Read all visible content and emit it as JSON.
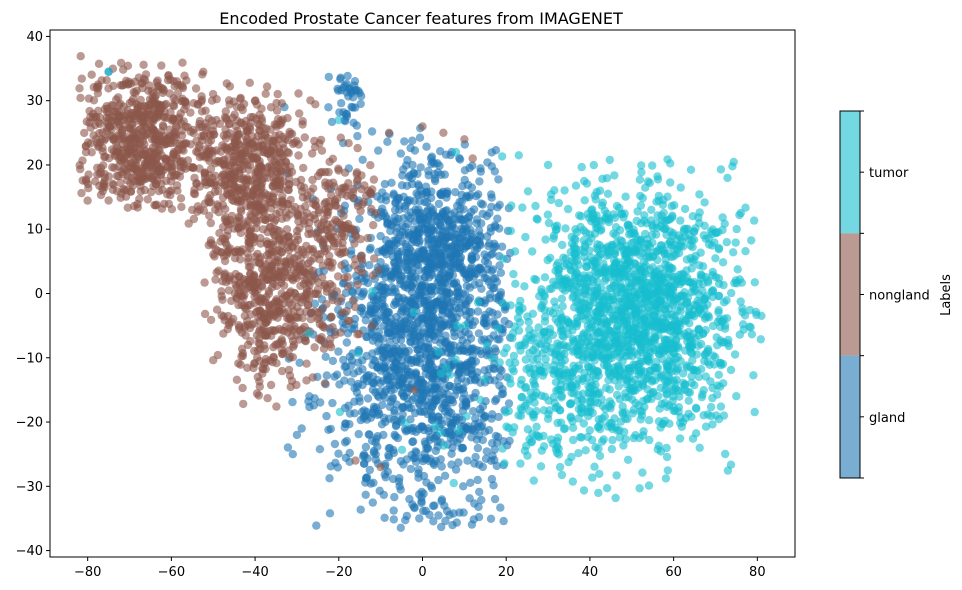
{
  "chart_data": {
    "type": "scatter",
    "title": "Encoded Prostate Cancer features from IMAGENET",
    "xlabel": "",
    "ylabel": "",
    "xlim": [
      -89,
      89
    ],
    "ylim": [
      -41,
      41
    ],
    "x_ticks": [
      -80,
      -60,
      -40,
      -20,
      0,
      20,
      40,
      60,
      80
    ],
    "y_ticks": [
      -40,
      -30,
      -20,
      -10,
      0,
      10,
      20,
      30,
      40
    ],
    "x_tick_labels": [
      "−80",
      "−60",
      "−40",
      "−20",
      "0",
      "20",
      "40",
      "60",
      "80"
    ],
    "y_tick_labels": [
      "−40",
      "−30",
      "−20",
      "−10",
      "0",
      "10",
      "20",
      "30",
      "40"
    ],
    "grid": false,
    "point_alpha": 0.6,
    "colorbar": {
      "title": "Labels",
      "entries": [
        {
          "label": "tumor",
          "color": "#17becf"
        },
        {
          "label": "nongland",
          "color": "#8c564b"
        },
        {
          "label": "gland",
          "color": "#1f77b4"
        }
      ]
    },
    "series": [
      {
        "name": "gland",
        "color": "#1f77b4",
        "clusters": [
          {
            "cx": 0,
            "cy": -8,
            "sx": 11,
            "sy": 14,
            "n": 1500,
            "xmin": -33,
            "xmax": 21,
            "ymin": -37,
            "ymax": 26
          },
          {
            "cx": 5,
            "cy": 8,
            "sx": 8,
            "sy": 7,
            "n": 350,
            "xmin": -10,
            "xmax": 19,
            "ymin": -5,
            "ymax": 26
          },
          {
            "cx": -18,
            "cy": 31,
            "sx": 2,
            "sy": 2.5,
            "n": 40,
            "xmin": -23,
            "xmax": -12,
            "ymin": 24,
            "ymax": 34
          }
        ],
        "points": [
          [
            -75,
            34.5
          ],
          [
            -33,
            29
          ],
          [
            -30,
            -22
          ],
          [
            -31,
            -25
          ]
        ]
      },
      {
        "name": "nongland",
        "color": "#8c564b",
        "clusters": [
          {
            "cx": -67,
            "cy": 24,
            "sx": 8,
            "sy": 5.5,
            "n": 650,
            "xmin": -82,
            "xmax": -49,
            "ymin": 13,
            "ymax": 37
          },
          {
            "cx": -42,
            "cy": 20,
            "sx": 7,
            "sy": 6,
            "n": 500,
            "xmin": -56,
            "xmax": -25,
            "ymin": 5,
            "ymax": 33
          },
          {
            "cx": -35,
            "cy": 2,
            "sx": 8,
            "sy": 8,
            "n": 650,
            "xmin": -53,
            "xmax": -14,
            "ymin": -18,
            "ymax": 18
          },
          {
            "cx": -20,
            "cy": 12,
            "sx": 5,
            "sy": 6,
            "n": 150,
            "xmin": -30,
            "xmax": -10,
            "ymin": 0,
            "ymax": 25
          }
        ],
        "points": [
          [
            -8,
            25
          ],
          [
            0,
            26
          ],
          [
            5,
            25
          ],
          [
            10,
            24
          ],
          [
            12,
            21
          ],
          [
            -10,
            -27
          ],
          [
            -16,
            -26
          ],
          [
            -2,
            -15
          ],
          [
            -12,
            -5
          ]
        ]
      },
      {
        "name": "tumor",
        "color": "#17becf",
        "clusters": [
          {
            "cx": 50,
            "cy": -3,
            "sx": 13,
            "sy": 10,
            "n": 1700,
            "xmin": 18,
            "xmax": 81,
            "ymin": -32,
            "ymax": 22
          },
          {
            "cx": 30,
            "cy": -15,
            "sx": 8,
            "sy": 8,
            "n": 150,
            "xmin": 18,
            "xmax": 45,
            "ymin": -30,
            "ymax": 5
          },
          {
            "cx": 2,
            "cy": -15,
            "sx": 12,
            "sy": 10,
            "n": 25,
            "xmin": -30,
            "xmax": 20,
            "ymin": -35,
            "ymax": 5
          }
        ],
        "points": [
          [
            -75,
            34.5
          ],
          [
            23,
            21.5
          ],
          [
            30,
            20
          ],
          [
            8,
            22
          ],
          [
            -20,
            27
          ]
        ]
      }
    ]
  }
}
